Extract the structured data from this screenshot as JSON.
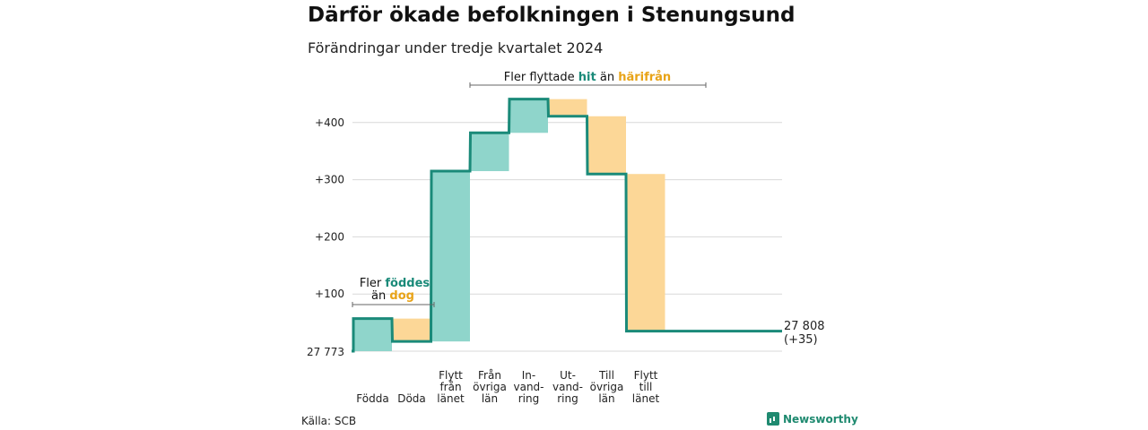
{
  "header": {
    "title": "Därför ökade befolkningen i Stenungsund",
    "subtitle": "Förändringar under tredje kvartalet 2024"
  },
  "footer": {
    "source": "Källa: SCB",
    "brand": "Newsworthy"
  },
  "colors": {
    "increase": "#8fd5cb",
    "decrease": "#fcd797",
    "line": "#1a8a79",
    "hit_text": "#1a8a79",
    "harifran_text": "#e8a317",
    "grid": "#d9d9d9"
  },
  "annotations": {
    "births": {
      "line1_prefix": "Fler ",
      "line1_highlight": "föddes",
      "line2_prefix": "än ",
      "line2_highlight": "dog"
    },
    "migration": {
      "prefix": "Fler flyttade ",
      "highlight1": "hit",
      "middle": " än ",
      "highlight2": "härifrån"
    }
  },
  "end_label": {
    "value": "27 808",
    "change": "(+35)"
  },
  "chart_data": {
    "type": "waterfall",
    "title": "Därför ökade befolkningen i Stenungsund",
    "subtitle": "Förändringar under tredje kvartalet 2024",
    "start_value": 27773,
    "start_label": "27 773",
    "end_value": 27808,
    "end_label": "27 808",
    "end_change_label": "(+35)",
    "y_ticks": [
      {
        "value": 100,
        "label": "+100"
      },
      {
        "value": 200,
        "label": "+200"
      },
      {
        "value": 300,
        "label": "+300"
      },
      {
        "value": 400,
        "label": "+400"
      }
    ],
    "ylim": [
      0,
      420
    ],
    "grid": true,
    "steps": [
      {
        "label": [
          "Födda"
        ],
        "change": 57,
        "kind": "increase"
      },
      {
        "label": [
          "Döda"
        ],
        "change": -40,
        "kind": "decrease"
      },
      {
        "label": [
          "Flytt",
          "från",
          "länet"
        ],
        "change": 298,
        "kind": "increase"
      },
      {
        "label": [
          "Från",
          "övriga",
          "län"
        ],
        "change": 67,
        "kind": "increase"
      },
      {
        "label": [
          "In-",
          "vand-",
          "ring"
        ],
        "change": 59,
        "kind": "increase"
      },
      {
        "label": [
          "Ut-",
          "vand-",
          "ring"
        ],
        "change": -30,
        "kind": "decrease"
      },
      {
        "label": [
          "Till",
          "övriga",
          "län"
        ],
        "change": -101,
        "kind": "decrease"
      },
      {
        "label": [
          "Flytt",
          "till",
          "länet"
        ],
        "change": -275,
        "kind": "decrease"
      }
    ]
  }
}
